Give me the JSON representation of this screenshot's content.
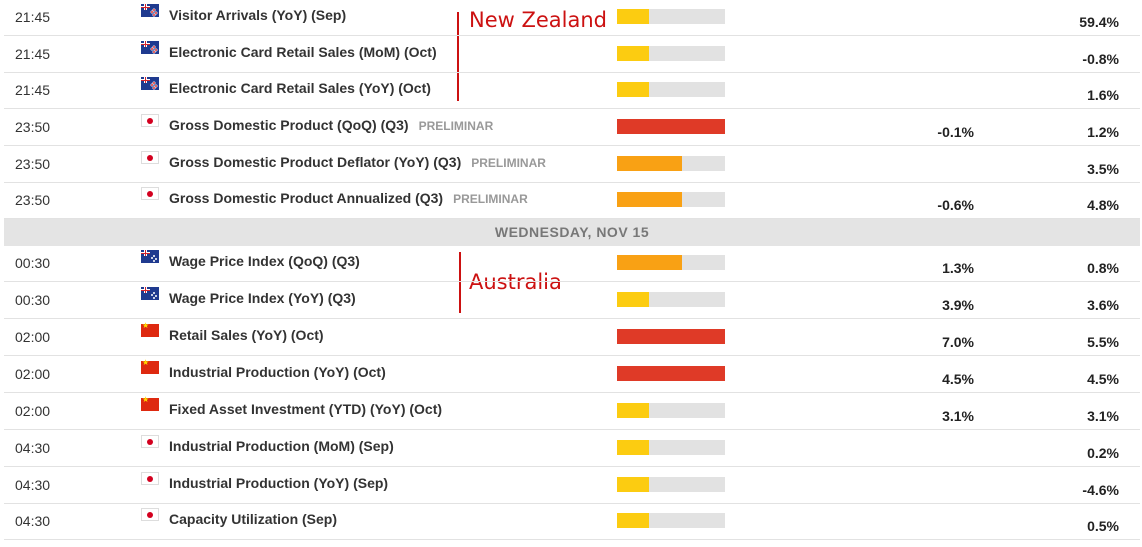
{
  "day_header": "WEDNESDAY, NOV 15",
  "annotations": [
    {
      "id": "nz",
      "text": "New Zealand"
    },
    {
      "id": "au",
      "text": "Australia"
    }
  ],
  "impact_colors": {
    "low": "#fccc11",
    "medium": "#f9a114",
    "high": "#df3a27"
  },
  "impact_levels": {
    "low": 0.3,
    "medium": 0.6,
    "high": 1.0
  },
  "rows": [
    {
      "time": "21:45",
      "flag": "nz",
      "event": "Visitor Arrivals (YoY) (Sep)",
      "tag": "",
      "impact": "low",
      "forecast": "",
      "previous": "59.4%"
    },
    {
      "time": "21:45",
      "flag": "nz",
      "event": "Electronic Card Retail Sales (MoM) (Oct)",
      "tag": "",
      "impact": "low",
      "forecast": "",
      "previous": "-0.8%"
    },
    {
      "time": "21:45",
      "flag": "nz",
      "event": "Electronic Card Retail Sales (YoY) (Oct)",
      "tag": "",
      "impact": "low",
      "forecast": "",
      "previous": "1.6%"
    },
    {
      "time": "23:50",
      "flag": "jp",
      "event": "Gross Domestic Product (QoQ) (Q3)",
      "tag": "PRELIMINAR",
      "impact": "high",
      "forecast": "-0.1%",
      "previous": "1.2%"
    },
    {
      "time": "23:50",
      "flag": "jp",
      "event": "Gross Domestic Product Deflator (YoY) (Q3)",
      "tag": "PRELIMINAR",
      "impact": "medium",
      "forecast": "",
      "previous": "3.5%"
    },
    {
      "time": "23:50",
      "flag": "jp",
      "event": "Gross Domestic Product Annualized (Q3)",
      "tag": "PRELIMINAR",
      "impact": "medium",
      "forecast": "-0.6%",
      "previous": "4.8%"
    },
    {
      "time": "00:30",
      "flag": "au",
      "event": "Wage Price Index (QoQ) (Q3)",
      "tag": "",
      "impact": "medium",
      "forecast": "1.3%",
      "previous": "0.8%"
    },
    {
      "time": "00:30",
      "flag": "au",
      "event": "Wage Price Index (YoY) (Q3)",
      "tag": "",
      "impact": "low",
      "forecast": "3.9%",
      "previous": "3.6%"
    },
    {
      "time": "02:00",
      "flag": "cn",
      "event": "Retail Sales (YoY) (Oct)",
      "tag": "",
      "impact": "high",
      "forecast": "7.0%",
      "previous": "5.5%"
    },
    {
      "time": "02:00",
      "flag": "cn",
      "event": "Industrial Production (YoY) (Oct)",
      "tag": "",
      "impact": "high",
      "forecast": "4.5%",
      "previous": "4.5%"
    },
    {
      "time": "02:00",
      "flag": "cn",
      "event": "Fixed Asset Investment (YTD) (YoY) (Oct)",
      "tag": "",
      "impact": "low",
      "forecast": "3.1%",
      "previous": "3.1%"
    },
    {
      "time": "04:30",
      "flag": "jp",
      "event": "Industrial Production (MoM) (Sep)",
      "tag": "",
      "impact": "low",
      "forecast": "",
      "previous": "0.2%"
    },
    {
      "time": "04:30",
      "flag": "jp",
      "event": "Industrial Production (YoY) (Sep)",
      "tag": "",
      "impact": "low",
      "forecast": "",
      "previous": "-4.6%"
    },
    {
      "time": "04:30",
      "flag": "jp",
      "event": "Capacity Utilization (Sep)",
      "tag": "",
      "impact": "low",
      "forecast": "",
      "previous": "0.5%"
    }
  ]
}
